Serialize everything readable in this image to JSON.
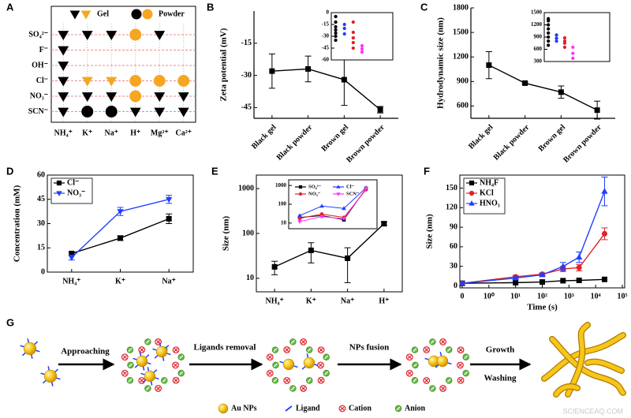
{
  "chart_data": [
    {
      "panel": "A",
      "type": "matrix",
      "rows": [
        "SO₄²⁻",
        "F⁻",
        "OH⁻",
        "Cl⁻",
        "NO₃⁻",
        "SCN⁻"
      ],
      "columns": [
        "NH₄⁺",
        "K⁺",
        "Na⁺",
        "H⁺",
        "Mg²⁺",
        "Ca²⁺"
      ],
      "legend": [
        {
          "label": "Gel",
          "marker": "triangle-down"
        },
        {
          "label": "Powder",
          "marker": "circle"
        }
      ],
      "colors": [
        "#000000",
        "#f5a623"
      ],
      "cells": [
        [
          [
            0,
            0
          ],
          [
            0,
            0
          ],
          [
            0,
            0
          ],
          [
            1,
            1
          ],
          [
            0,
            0
          ],
          null
        ],
        [
          [
            0,
            0
          ],
          null,
          null,
          null,
          null,
          null
        ],
        [
          [
            0,
            0
          ],
          null,
          null,
          null,
          null,
          null
        ],
        [
          [
            0,
            0
          ],
          [
            0,
            1
          ],
          [
            0,
            1
          ],
          [
            1,
            1
          ],
          [
            1,
            1
          ],
          [
            1,
            1
          ]
        ],
        [
          [
            0,
            0
          ],
          [
            0,
            0
          ],
          [
            0,
            0
          ],
          [
            1,
            1
          ],
          [
            0,
            0
          ],
          [
            0,
            0
          ]
        ],
        [
          [
            0,
            0
          ],
          [
            1,
            0
          ],
          [
            1,
            0
          ],
          [
            0,
            0
          ],
          [
            0,
            0
          ],
          [
            0,
            0
          ]
        ]
      ]
    },
    {
      "panel": "B",
      "type": "line",
      "ylabel": "Zeta potential (mV)",
      "categories": [
        "Black gel",
        "Black powder",
        "Brown gel",
        "Brown powder"
      ],
      "xtick_rotation": -45,
      "ylim": [
        -50,
        0
      ],
      "yticks": [
        -15,
        -30,
        -45
      ],
      "frame": false,
      "series": [
        {
          "color": "#000000",
          "marker": "square",
          "values": [
            -28,
            -27,
            -32,
            -46
          ],
          "errors": [
            8,
            6,
            12,
            1.5
          ]
        }
      ],
      "inset": {
        "type": "strip",
        "ylim": [
          -60,
          0
        ],
        "yticks": [
          0,
          -15,
          -30,
          -45,
          -60
        ],
        "frame": true,
        "series": [
          {
            "color": "#000000",
            "marker": "circle",
            "values": [
              -5,
              -12,
              -18,
              -22,
              -26,
              -30,
              -35
            ]
          },
          {
            "color": "#1f3fff",
            "marker": "circle",
            "values": [
              -15,
              -20,
              -27
            ]
          },
          {
            "color": "#e0202a",
            "marker": "circle",
            "values": [
              -12,
              -25,
              -32,
              -38,
              -45
            ]
          },
          {
            "color": "#ff33ff",
            "marker": "circle",
            "values": [
              -42,
              -46,
              -50
            ]
          }
        ]
      }
    },
    {
      "panel": "C",
      "type": "line",
      "ylabel": "Hydrodynamic size (nm)",
      "categories": [
        "Black gel",
        "Black powder",
        "Brown gel",
        "Brown powder"
      ],
      "xtick_rotation": -45,
      "ylim": [
        450,
        1800
      ],
      "yticks": [
        600,
        900,
        1200,
        1500,
        1800
      ],
      "frame": false,
      "series": [
        {
          "color": "#000000",
          "marker": "square",
          "values": [
            1100,
            880,
            770,
            550
          ],
          "errors": [
            165,
            12,
            75,
            110
          ]
        }
      ],
      "inset": {
        "type": "strip",
        "ylim": [
          300,
          1500
        ],
        "yticks": [
          300,
          600,
          900,
          1200,
          1500
        ],
        "frame": true,
        "series": [
          {
            "color": "#000000",
            "marker": "circle",
            "values": [
              700,
              800,
              900,
              1000,
              1100,
              1200,
              1300,
              1350
            ]
          },
          {
            "color": "#1f3fff",
            "marker": "circle",
            "values": [
              800,
              870,
              950
            ]
          },
          {
            "color": "#e0202a",
            "marker": "circle",
            "values": [
              650,
              750,
              800,
              880
            ]
          },
          {
            "color": "#ff33ff",
            "marker": "circle",
            "values": [
              380,
              500,
              650
            ]
          }
        ]
      }
    },
    {
      "panel": "D",
      "type": "line",
      "ylabel": "Concentration (mM)",
      "categories": [
        "NH₄⁺",
        "K⁺",
        "Na⁺"
      ],
      "ylim": [
        0,
        60
      ],
      "yticks": [
        0,
        15,
        30,
        45,
        60
      ],
      "frame": true,
      "legend": "upper left",
      "series": [
        {
          "name": "Cl⁻",
          "color": "#000000",
          "marker": "square",
          "values": [
            11.5,
            21,
            33
          ],
          "errors": [
            1,
            1.5,
            3
          ]
        },
        {
          "name": "NO₃⁻",
          "color": "#1f3fff",
          "marker": "triangle-down",
          "values": [
            9,
            37.5,
            45
          ],
          "errors": [
            1.5,
            2.5,
            2.5
          ]
        }
      ]
    },
    {
      "panel": "E",
      "type": "line",
      "ylabel": "Size (nm)",
      "ylog": true,
      "categories": [
        "NH₄⁺",
        "K⁺",
        "Na⁺",
        "H⁺"
      ],
      "ylim": [
        5,
        2000
      ],
      "yticks": [
        10,
        100,
        1000
      ],
      "frame": true,
      "series": [
        {
          "color": "#000000",
          "marker": "square",
          "values": [
            18,
            42,
            28,
            165
          ],
          "errors": [
            6,
            20,
            20,
            15
          ]
        }
      ],
      "inset": {
        "type": "line",
        "ylog": true,
        "ylim": [
          5,
          2000
        ],
        "yticks": [
          10,
          100,
          1000
        ],
        "frame": true,
        "legend": "upper left",
        "legend_columns": 2,
        "series": [
          {
            "name": "SO₄²⁻",
            "color": "#000000",
            "marker": "square",
            "values": [
              20,
              25,
              15,
              700
            ]
          },
          {
            "name": "Cl⁻",
            "color": "#1f3fff",
            "marker": "triangle-up",
            "values": [
              25,
              80,
              60,
              750
            ]
          },
          {
            "name": "NO₃⁻",
            "color": "#e0202a",
            "marker": "circle",
            "values": [
              18,
              30,
              20,
              600
            ]
          },
          {
            "name": "SCN⁻",
            "color": "#ff33ff",
            "marker": "triangle-down",
            "values": [
              12,
              22,
              17,
              700
            ]
          }
        ]
      }
    },
    {
      "panel": "F",
      "type": "line",
      "ylabel": "Size (nm)",
      "xlabel": "Time (s)",
      "xscale": "symlog",
      "x": [
        0,
        10,
        100,
        600,
        2400,
        21600
      ],
      "xlim": [
        0,
        100000
      ],
      "xticks": [
        {
          "value": 0,
          "label": "0"
        },
        {
          "value": 1,
          "label": "10⁰"
        },
        {
          "value": 10,
          "label": "10¹"
        },
        {
          "value": 100,
          "label": "10²"
        },
        {
          "value": 1000,
          "label": "10³"
        },
        {
          "value": 10000,
          "label": "10⁴"
        },
        {
          "value": 100000,
          "label": "10⁵"
        }
      ],
      "ylim": [
        -3,
        170
      ],
      "yticks": [
        0,
        30,
        60,
        90,
        120,
        150
      ],
      "frame": true,
      "legend": "upper left",
      "series": [
        {
          "name": "NH₄F",
          "color": "#000000",
          "marker": "square",
          "values": [
            4,
            5,
            6,
            8,
            8.5,
            10
          ]
        },
        {
          "name": "KCl",
          "color": "#e0202a",
          "marker": "circle",
          "values": [
            4,
            14,
            18,
            26,
            28,
            80
          ],
          "errors": [
            0,
            2,
            2,
            4,
            5,
            9
          ]
        },
        {
          "name": "HNO₃",
          "color": "#1f3fff",
          "marker": "triangle-up",
          "values": [
            4,
            12,
            17,
            30,
            44,
            145
          ],
          "errors": [
            0,
            2,
            2,
            6,
            8,
            22
          ]
        }
      ]
    }
  ],
  "scheme": {
    "panel": "G",
    "steps": [
      "Approaching",
      "Ligands removal",
      "NPs fusion",
      "Growth",
      "Washing"
    ],
    "legend": [
      "Au NPs",
      "Ligand",
      "Cation",
      "Anion"
    ]
  },
  "watermark": "SCIENCEAQ.COM"
}
